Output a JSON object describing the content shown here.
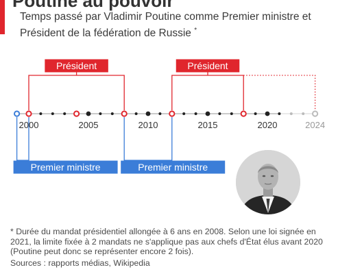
{
  "header": {
    "title": "Poutine au pouvoir",
    "subtitle": "Temps passé par Vladimir Poutine comme Premier ministre et Président de la fédération de Russie",
    "subtitle_marker": "*"
  },
  "chart_data": {
    "type": "timeline",
    "x_range": [
      2000,
      2024
    ],
    "tick_labels": [
      {
        "year": 2000,
        "label": "2000",
        "muted": false
      },
      {
        "year": 2005,
        "label": "2005",
        "muted": false
      },
      {
        "year": 2010,
        "label": "2010",
        "muted": false
      },
      {
        "year": 2015,
        "label": "2015",
        "muted": false
      },
      {
        "year": 2020,
        "label": "2020",
        "muted": false
      },
      {
        "year": 2024,
        "label": "2024",
        "muted": true
      }
    ],
    "markers": [
      {
        "year": 1999,
        "style": "ring",
        "color": "#3b7dd8"
      },
      {
        "year": 2000,
        "style": "ring",
        "color": "#e0262d"
      },
      {
        "year": 2001,
        "style": "dot",
        "color": "#222222"
      },
      {
        "year": 2002,
        "style": "dot",
        "color": "#222222"
      },
      {
        "year": 2003,
        "style": "dot",
        "color": "#222222"
      },
      {
        "year": 2004,
        "style": "ring",
        "color": "#e0262d"
      },
      {
        "year": 2005,
        "style": "dot-large",
        "color": "#222222"
      },
      {
        "year": 2006,
        "style": "dot",
        "color": "#222222"
      },
      {
        "year": 2007,
        "style": "dot",
        "color": "#222222"
      },
      {
        "year": 2008,
        "style": "ring",
        "color": "#e0262d"
      },
      {
        "year": 2009,
        "style": "dot",
        "color": "#222222"
      },
      {
        "year": 2010,
        "style": "dot-large",
        "color": "#222222"
      },
      {
        "year": 2011,
        "style": "dot",
        "color": "#222222"
      },
      {
        "year": 2012,
        "style": "ring",
        "color": "#e0262d"
      },
      {
        "year": 2013,
        "style": "dot",
        "color": "#222222"
      },
      {
        "year": 2014,
        "style": "dot",
        "color": "#222222"
      },
      {
        "year": 2015,
        "style": "dot-large",
        "color": "#222222"
      },
      {
        "year": 2016,
        "style": "dot",
        "color": "#222222"
      },
      {
        "year": 2017,
        "style": "dot",
        "color": "#222222"
      },
      {
        "year": 2018,
        "style": "ring",
        "color": "#e0262d"
      },
      {
        "year": 2019,
        "style": "dot",
        "color": "#222222"
      },
      {
        "year": 2020,
        "style": "dot-large",
        "color": "#222222"
      },
      {
        "year": 2021,
        "style": "dot",
        "color": "#222222"
      },
      {
        "year": 2022,
        "style": "dot",
        "color": "#bbbbbb"
      },
      {
        "year": 2023,
        "style": "dot",
        "color": "#bbbbbb"
      },
      {
        "year": 2024,
        "style": "ring",
        "color": "#bbbbbb"
      }
    ],
    "president_terms": [
      {
        "label": "Président",
        "start": 2000,
        "end": 2008,
        "dashed_to": null
      },
      {
        "label": "Président",
        "start": 2012,
        "end": 2018,
        "dashed_to": 2024
      }
    ],
    "prime_minister_terms": [
      {
        "label": "Premier ministre",
        "start": 1999,
        "end": 2000
      },
      {
        "label": "Premier ministre",
        "start": 2008,
        "end": 2012
      }
    ]
  },
  "colors": {
    "president": "#e0262d",
    "prime_minister": "#3b7dd8",
    "line": "#aaaaaa",
    "future": "#bbbbbb"
  },
  "photo": {
    "icon": "vladimir-putin-portrait"
  },
  "footnote": "* Durée du mandat présidentiel allongée à 6 ans en 2008. Selon une loi signée en 2021, la limite fixée à 2 mandats ne s'applique pas aux chefs d'État élus avant 2020 (Poutine peut donc se représenter encore 2 fois).",
  "sources": "Sources : rapports médias, Wikipedia"
}
